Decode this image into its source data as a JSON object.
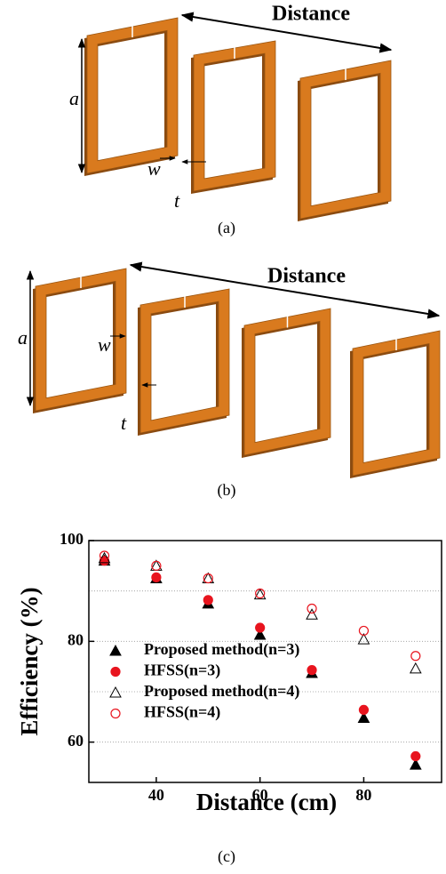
{
  "panel_a": {
    "distance_label": "Distance",
    "a_label": "a",
    "w_label": "w",
    "t_label": "t",
    "caption": "(a)"
  },
  "panel_b": {
    "distance_label": "Distance",
    "a_label": "a",
    "w_label": "w",
    "t_label": "t",
    "caption": "(b)"
  },
  "chart_data": {
    "type": "scatter",
    "caption": "(c)",
    "x_label": "Distance (cm)",
    "y_label": "Efficiency (%)",
    "xlim": [
      27,
      95
    ],
    "xticks": [
      40,
      60,
      80
    ],
    "ylim": [
      52,
      100
    ],
    "yticks": [
      60,
      80,
      100
    ],
    "ygrid": [
      60,
      70,
      80,
      90
    ],
    "legend": "lower left",
    "series": [
      {
        "name": "Proposed method(n=3)",
        "color": "#000000",
        "marker": "triangle",
        "filled": true,
        "x": [
          30,
          40,
          50,
          60,
          70,
          80,
          90
        ],
        "values": [
          96,
          92.5,
          87.5,
          81.3,
          73.7,
          64.8,
          55.5
        ]
      },
      {
        "name": "HFSS(n=3)",
        "color": "#e8141e",
        "marker": "circle",
        "filled": true,
        "x": [
          30,
          40,
          50,
          60,
          70,
          80,
          90
        ],
        "values": [
          96,
          92.7,
          88.2,
          82.7,
          74.3,
          66.4,
          57.2
        ]
      },
      {
        "name": "Proposed method(n=4)",
        "color": "#000000",
        "marker": "triangle",
        "filled": false,
        "x": [
          30,
          40,
          50,
          60,
          70,
          80,
          90
        ],
        "values": [
          96.5,
          95,
          92.5,
          89.3,
          85.3,
          80.4,
          74.6
        ]
      },
      {
        "name": "HFSS(n=4)",
        "color": "#e8141e",
        "marker": "circle",
        "filled": false,
        "x": [
          30,
          40,
          50,
          60,
          70,
          80,
          90
        ],
        "values": [
          97,
          95,
          92.5,
          89.5,
          86.5,
          82.1,
          77.1
        ]
      }
    ]
  }
}
